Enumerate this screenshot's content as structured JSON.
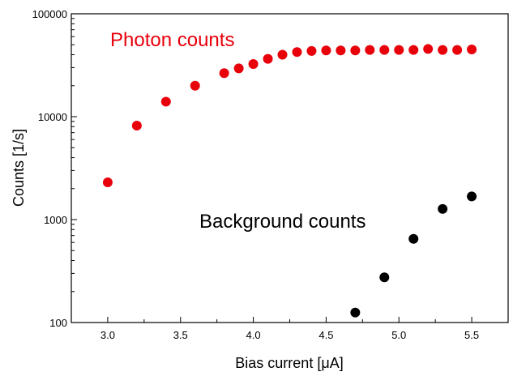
{
  "chart_data": {
    "type": "scatter",
    "title": "",
    "xlabel": "Bias current  [μA]",
    "ylabel": "Counts [1/s]",
    "xlim": [
      2.75,
      5.75
    ],
    "ylim": [
      100,
      100000
    ],
    "yscale": "log",
    "grid": false,
    "x_ticks": [
      3.0,
      3.5,
      4.0,
      4.5,
      5.0,
      5.5
    ],
    "x_tick_labels": [
      "3.0",
      "3.5",
      "4.0",
      "4.5",
      "5.0",
      "5.5"
    ],
    "y_ticks": [
      100,
      1000,
      10000,
      100000
    ],
    "y_tick_labels": [
      "100",
      "1000",
      "10000",
      "100000"
    ],
    "series": [
      {
        "name": "Photon counts",
        "color": "#e8000b",
        "x": [
          3.0,
          3.2,
          3.4,
          3.6,
          3.8,
          3.9,
          4.0,
          4.1,
          4.2,
          4.3,
          4.4,
          4.5,
          4.6,
          4.7,
          4.8,
          4.9,
          5.0,
          5.1,
          5.2,
          5.3,
          5.4,
          5.5
        ],
        "y": [
          2300,
          8200,
          14000,
          20000,
          26500,
          29500,
          32500,
          36500,
          40000,
          42500,
          43500,
          44000,
          44000,
          44000,
          44500,
          44500,
          44500,
          44500,
          45500,
          44500,
          44500,
          45000
        ]
      },
      {
        "name": "Background counts",
        "color": "#000000",
        "x": [
          4.7,
          4.9,
          5.1,
          5.3,
          5.5
        ],
        "y": [
          125,
          275,
          650,
          1270,
          1680
        ]
      }
    ],
    "annotations": [
      {
        "text": "Photon counts",
        "color": "#e8000b"
      },
      {
        "text": "Background counts",
        "color": "#000000"
      }
    ]
  }
}
